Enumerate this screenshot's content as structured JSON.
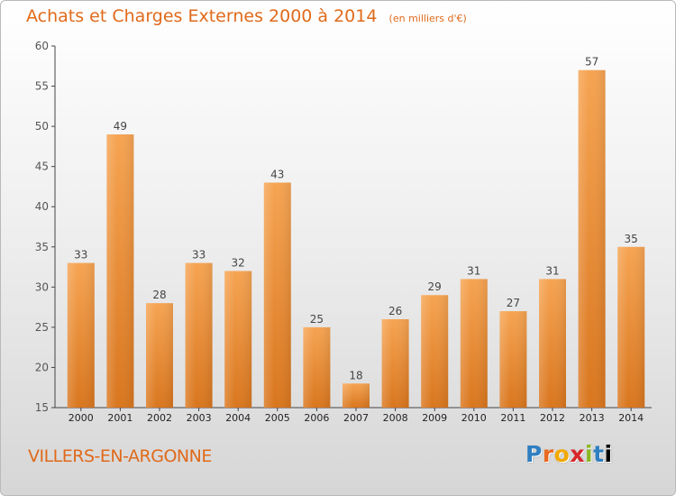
{
  "header": {
    "title": "Achats et Charges Externes 2000 à 2014",
    "unit": "(en milliers d'€)"
  },
  "footer": {
    "place": "VILLERS-EN-ARGONNE",
    "brand_letters": [
      "P",
      "r",
      "o",
      "x",
      "i",
      "t",
      "i"
    ]
  },
  "colors": {
    "title": "#e06a1b",
    "bar_light": "#f6a452",
    "bar_dark": "#d9761e",
    "axis": "#444444"
  },
  "chart_data": {
    "type": "bar",
    "title": "Achats et Charges Externes 2000 à 2014",
    "subtitle": "(en milliers d'€)",
    "xlabel": "",
    "ylabel": "",
    "categories": [
      "2000",
      "2001",
      "2002",
      "2003",
      "2004",
      "2005",
      "2006",
      "2007",
      "2008",
      "2009",
      "2010",
      "2011",
      "2012",
      "2013",
      "2014"
    ],
    "values": [
      33,
      49,
      28,
      33,
      32,
      43,
      25,
      18,
      26,
      29,
      31,
      27,
      31,
      57,
      35
    ],
    "ylim": [
      15,
      60
    ],
    "yticks": [
      15,
      20,
      25,
      30,
      35,
      40,
      45,
      50,
      55,
      60
    ],
    "grid": false,
    "data_labels": true
  }
}
